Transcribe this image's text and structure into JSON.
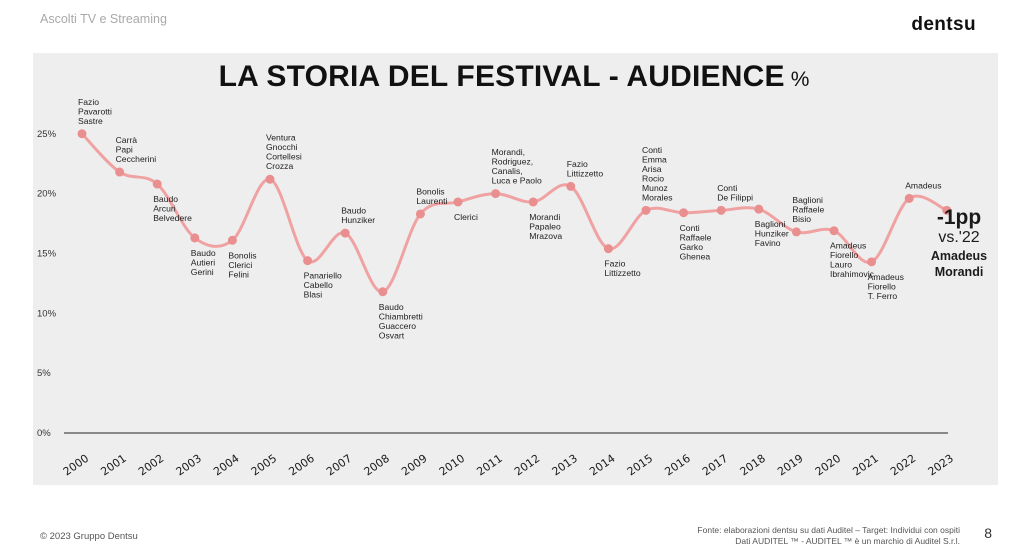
{
  "header": {
    "slide_tag": "Ascolti TV e Streaming",
    "brand": "dentsu"
  },
  "title": {
    "main": "LA STORIA DEL FESTIVAL - AUDIENCE",
    "unit": "%"
  },
  "summary": {
    "change": "-1pp",
    "vs": "vs.'22",
    "hosts": [
      "Amadeus",
      "Morandi"
    ]
  },
  "footer": {
    "copyright": "© 2023 Gruppo Dentsu",
    "source_line1": "Fonte: elaborazioni dentsu su dati Auditel – Target: Individui con ospiti",
    "source_line2": "Dati AUDITEL ™ - AUDITEL ™ è un marchio di Auditel S.r.l.",
    "page": "8"
  },
  "colors": {
    "line": "#f0a2a2",
    "point": "#ea8f8f",
    "panel": "#eeeeee",
    "axis": "#222222"
  },
  "chart_data": {
    "type": "line",
    "title": "",
    "xlabel": "",
    "ylabel": "",
    "ylim": [
      0,
      25
    ],
    "y_ticks": [
      "0%",
      "5%",
      "10%",
      "15%",
      "20%",
      "25%"
    ],
    "y_tick_values": [
      0,
      5,
      10,
      15,
      20,
      25
    ],
    "grid": false,
    "categories": [
      "2000",
      "2001",
      "2002",
      "2003",
      "2004",
      "2005",
      "2006",
      "2007",
      "2008",
      "2009",
      "2010",
      "2011",
      "2012",
      "2013",
      "2014",
      "2015",
      "2016",
      "2017",
      "2018",
      "2019",
      "2020",
      "2021",
      "2022",
      "2023"
    ],
    "series": [
      {
        "values": [
          25.0,
          21.8,
          20.8,
          16.3,
          16.1,
          21.2,
          14.4,
          16.7,
          11.8,
          18.3,
          19.3,
          20.0,
          19.3,
          20.6,
          15.4,
          18.6,
          18.4,
          18.6,
          18.7,
          16.8,
          16.9,
          14.3,
          19.6,
          18.6
        ]
      }
    ],
    "annotations": [
      {
        "year": "2000",
        "lines": [
          "Fazio",
          "Pavarotti",
          "Sastre"
        ],
        "position": "above"
      },
      {
        "year": "2001",
        "lines": [
          "Carrà",
          "Papi",
          "Ceccherini"
        ],
        "position": "above"
      },
      {
        "year": "2002",
        "lines": [
          "Baudo",
          "Arcuri",
          "Belvedere"
        ],
        "position": "below"
      },
      {
        "year": "2003",
        "lines": [
          "Baudo",
          "Autieri",
          "Gerini"
        ],
        "position": "below"
      },
      {
        "year": "2004",
        "lines": [
          "Bonolis",
          "Clerici",
          "Felini"
        ],
        "position": "below"
      },
      {
        "year": "2005",
        "lines": [
          "Ventura",
          "Gnocchi",
          "Cortellesi",
          "Crozza"
        ],
        "position": "above"
      },
      {
        "year": "2006",
        "lines": [
          "Panariello",
          "Cabello",
          "Blasi"
        ],
        "position": "below"
      },
      {
        "year": "2007",
        "lines": [
          "Baudo",
          "Hunziker"
        ],
        "position": "above"
      },
      {
        "year": "2008",
        "lines": [
          "Baudo",
          "Chiambretti",
          "Guaccero",
          "Osvart"
        ],
        "position": "below"
      },
      {
        "year": "2009",
        "lines": [
          "Bonolis",
          "Laurenti"
        ],
        "position": "above"
      },
      {
        "year": "2010",
        "lines": [
          "Clerici"
        ],
        "position": "below"
      },
      {
        "year": "2011",
        "lines": [
          "Morandi,",
          "Rodriguez,",
          "Canalis,",
          "Luca e Paolo"
        ],
        "position": "above"
      },
      {
        "year": "2012",
        "lines": [
          "Morandi",
          "Papaleo",
          "Mrazova"
        ],
        "position": "below"
      },
      {
        "year": "2013",
        "lines": [
          "Fazio",
          "Littizzetto"
        ],
        "position": "above"
      },
      {
        "year": "2014",
        "lines": [
          "Fazio",
          "Littizzetto"
        ],
        "position": "below"
      },
      {
        "year": "2015",
        "lines": [
          "Conti",
          "Emma",
          "Arisa",
          "Rocio",
          "Munoz",
          "Morales"
        ],
        "position": "above"
      },
      {
        "year": "2016",
        "lines": [
          "Conti",
          "Raffaele",
          "Garko",
          "Ghenea"
        ],
        "position": "below"
      },
      {
        "year": "2017",
        "lines": [
          "Conti",
          "De Filippi"
        ],
        "position": "above"
      },
      {
        "year": "2018",
        "lines": [
          "Baglioni",
          "Hunziker",
          "Favino"
        ],
        "position": "below"
      },
      {
        "year": "2019",
        "lines": [
          "Baglioni",
          "Raffaele",
          "Bisio"
        ],
        "position": "above"
      },
      {
        "year": "2020",
        "lines": [
          "Amadeus",
          "Fiorello",
          "Lauro",
          "Ibrahimovic"
        ],
        "position": "below"
      },
      {
        "year": "2021",
        "lines": [
          "Amadeus",
          "Fiorello",
          "T. Ferro"
        ],
        "position": "below"
      },
      {
        "year": "2022",
        "lines": [
          "Amadeus"
        ],
        "position": "above"
      }
    ]
  }
}
